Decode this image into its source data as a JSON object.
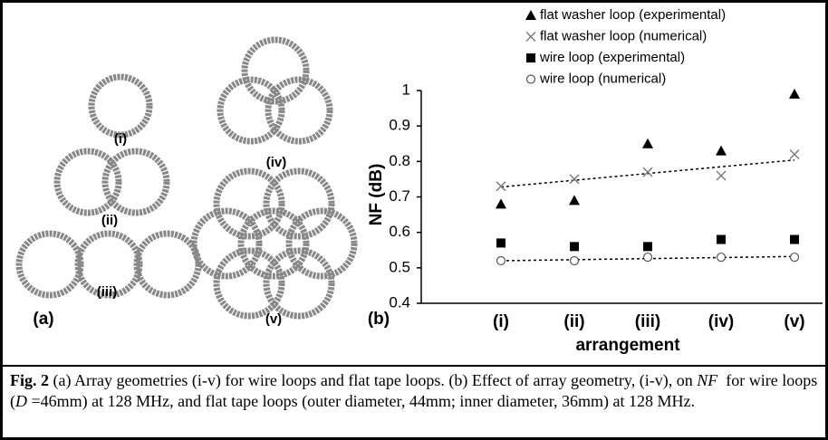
{
  "panel_a": {
    "labels": [
      "(i)",
      "(ii)",
      "(iii)",
      "(iv)",
      "(v)"
    ],
    "panel_label": "(a)"
  },
  "chart_data": {
    "type": "scatter",
    "panel_label": "(b)",
    "x_label": "arrangement",
    "y_label": "NF (dB)",
    "categories": [
      "(i)",
      "(ii)",
      "(iii)",
      "(iv)",
      "(v)"
    ],
    "ylim": [
      0.4,
      1
    ],
    "yticks": [
      0.4,
      0.5,
      0.6,
      0.7,
      0.8,
      0.9,
      1
    ],
    "series": [
      {
        "name": "flat washer loop (experimental)",
        "color": "#000000",
        "marker": "triangle",
        "values": [
          0.68,
          0.69,
          0.85,
          0.83,
          0.99
        ]
      },
      {
        "name": "flat washer loop (numerical)",
        "color": "#777777",
        "marker": "cross",
        "trend": true,
        "values": [
          0.73,
          0.75,
          0.77,
          0.76,
          0.82
        ]
      },
      {
        "name": "wire loop (experimental)",
        "color": "#000000",
        "marker": "square",
        "values": [
          0.57,
          0.56,
          0.56,
          0.58,
          0.58
        ]
      },
      {
        "name": "wire loop (numerical)",
        "color": "#555555",
        "marker": "circle",
        "trend": true,
        "values": [
          0.52,
          0.52,
          0.53,
          0.53,
          0.53
        ]
      }
    ]
  },
  "caption": {
    "parts": [
      "Fig. 2",
      " (a) Array geometries (i-v) for wire loops and flat tape loops. (b) Effect of array geometry, (i-v), on ",
      "NF",
      "  for wire loops (",
      "D",
      " =46mm) at 128 MHz, and flat tape loops (outer diameter, 44mm; inner diameter, 36mm) at 128 MHz."
    ]
  }
}
